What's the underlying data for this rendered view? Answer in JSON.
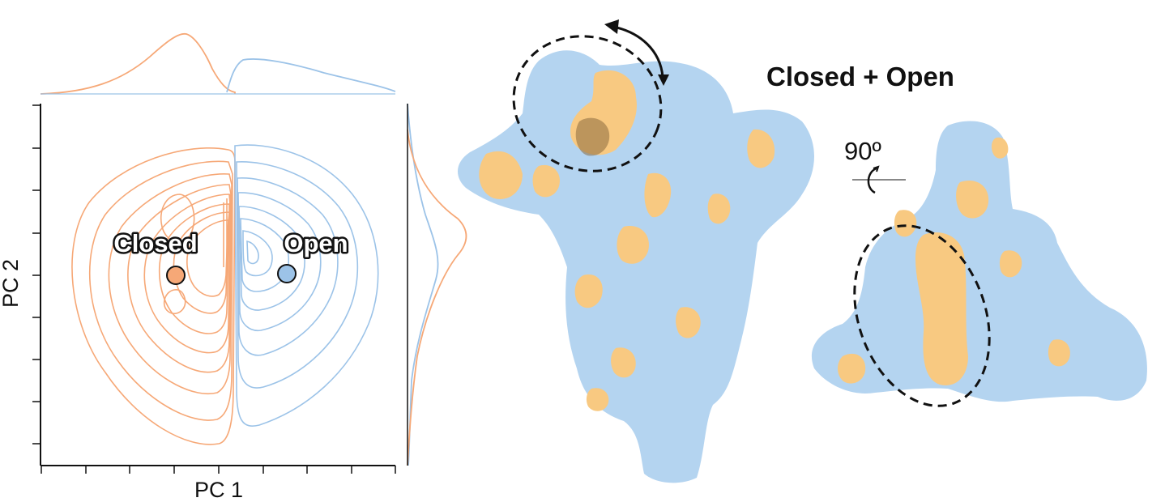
{
  "plot": {
    "xlabel": "PC 1",
    "ylabel": "PC 2",
    "labels": {
      "closed": "Closed",
      "open": "Open"
    }
  },
  "maps": {
    "title": "Closed + Open",
    "rotation": "90º"
  },
  "colors": {
    "closed": "#f6a877",
    "open": "#9cc3e8",
    "closed_surface": "#f8c981",
    "open_surface": "#b4d4f0"
  }
}
